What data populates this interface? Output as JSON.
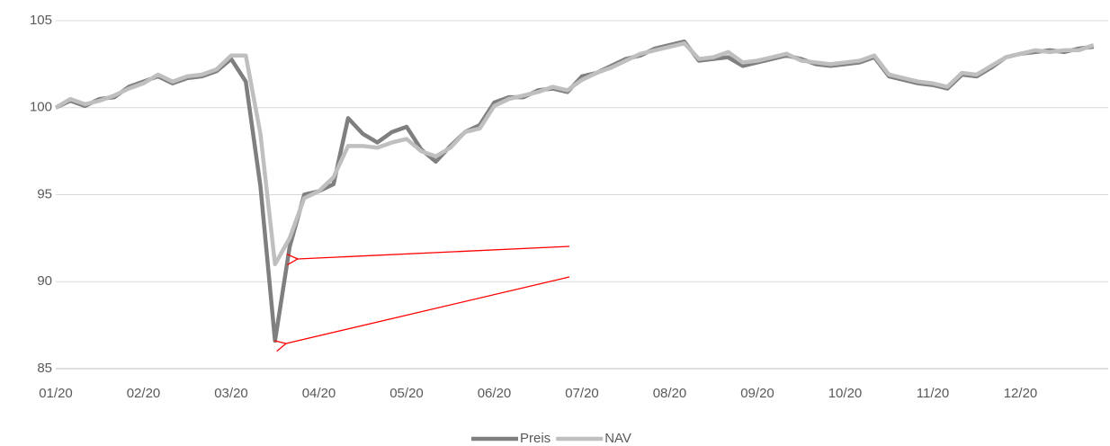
{
  "chart_data": {
    "type": "line",
    "categories": [
      "01/20",
      null,
      null,
      null,
      null,
      null,
      "02/20",
      null,
      null,
      null,
      null,
      null,
      "03/20",
      null,
      null,
      null,
      null,
      null,
      "04/20",
      null,
      null,
      null,
      null,
      null,
      "05/20",
      null,
      null,
      null,
      null,
      null,
      "06/20",
      null,
      null,
      null,
      null,
      null,
      "07/20",
      null,
      null,
      null,
      null,
      null,
      "08/20",
      null,
      null,
      null,
      null,
      null,
      "09/20",
      null,
      null,
      null,
      null,
      null,
      "10/20",
      null,
      null,
      null,
      null,
      null,
      "11/20",
      null,
      null,
      null,
      null,
      null,
      "12/20",
      null,
      null,
      null,
      null,
      null
    ],
    "series": [
      {
        "name": "Preis",
        "color": "#7f7f7f",
        "values": [
          100,
          100.4,
          100.1,
          100.5,
          100.6,
          101.2,
          101.5,
          101.8,
          101.4,
          101.7,
          101.8,
          102.1,
          102.8,
          101.5,
          95.5,
          86.6,
          92,
          95,
          95.2,
          95.6,
          99.4,
          98.5,
          98,
          98.6,
          98.9,
          97.6,
          96.9,
          97.8,
          98.6,
          99,
          100.3,
          100.6,
          100.6,
          101,
          101.1,
          100.9,
          101.8,
          102,
          102.4,
          102.8,
          103,
          103.4,
          103.6,
          103.8,
          102.7,
          102.8,
          102.9,
          102.4,
          102.6,
          102.8,
          103,
          102.8,
          102.5,
          102.4,
          102.5,
          102.6,
          102.9,
          101.8,
          101.6,
          101.4,
          101.3,
          101.1,
          101.9,
          101.8,
          102.3,
          102.9,
          103.1,
          103.2,
          103.3,
          103.2,
          103.4,
          103.5
        ]
      },
      {
        "name": "NAV",
        "color": "#bfbfbf",
        "values": [
          100,
          100.5,
          100.2,
          100.4,
          100.7,
          101.1,
          101.4,
          101.9,
          101.5,
          101.8,
          101.9,
          102.2,
          103,
          103,
          98.5,
          91,
          92.5,
          94.8,
          95.2,
          96,
          97.8,
          97.8,
          97.7,
          98,
          98.2,
          97.5,
          97.2,
          97.7,
          98.6,
          98.8,
          100.1,
          100.5,
          100.7,
          100.9,
          101.2,
          101,
          101.6,
          102,
          102.3,
          102.7,
          103.1,
          103.3,
          103.5,
          103.7,
          102.8,
          102.9,
          103.2,
          102.6,
          102.7,
          102.9,
          103.1,
          102.7,
          102.6,
          102.5,
          102.6,
          102.7,
          103,
          101.9,
          101.7,
          101.5,
          101.4,
          101.2,
          102,
          101.9,
          102.4,
          102.9,
          103.1,
          103.3,
          103.2,
          103.3,
          103.3,
          103.6
        ]
      }
    ],
    "ylim": [
      85,
      105
    ],
    "yticks": [
      85,
      90,
      95,
      100,
      105
    ],
    "grid": true,
    "legend": "bottom"
  }
}
